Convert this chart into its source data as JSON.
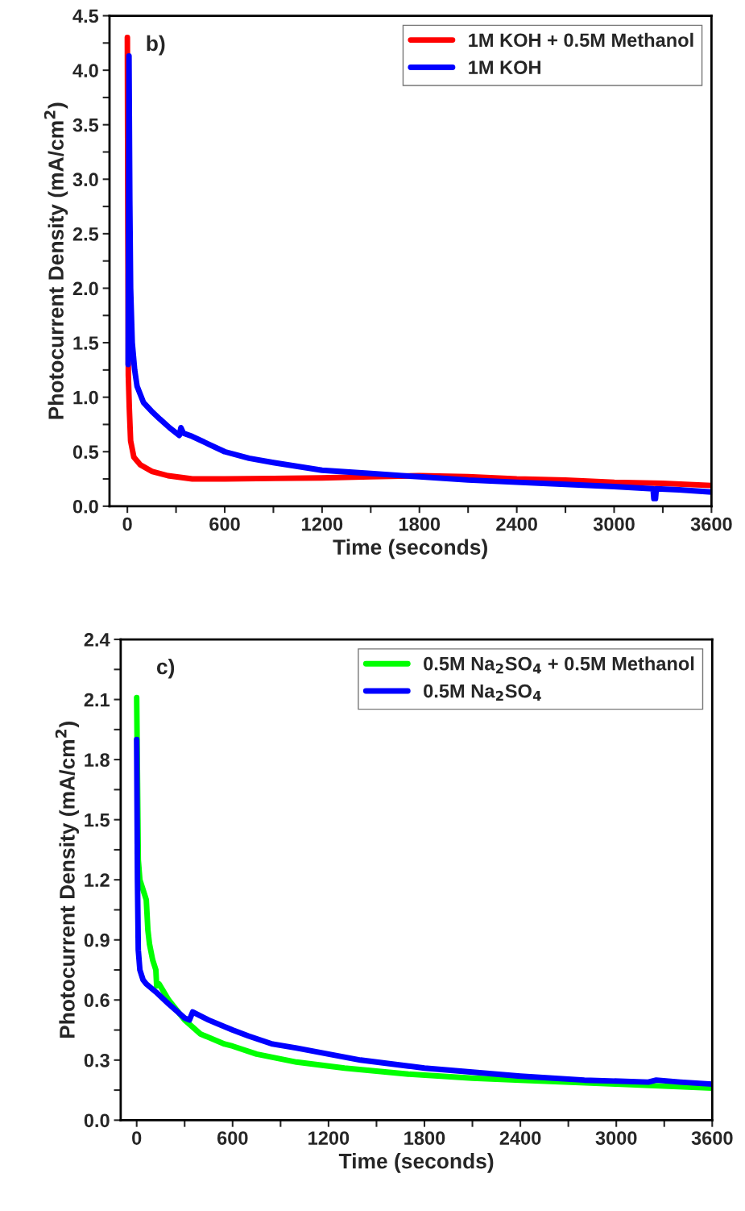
{
  "chart_data": [
    {
      "type": "line",
      "xlabel": "Time (seconds)",
      "ylabel": "Photocurrent Density (mA/cm$^{2}$)",
      "annotations": [
        "b)"
      ],
      "legend": "top right",
      "grid": false,
      "marker": "none",
      "line_style": "solid",
      "xlim": [
        -110,
        3600
      ],
      "ylim": [
        0,
        4.5
      ],
      "xticks": [
        0,
        {
          "value": 300,
          "label": null
        },
        600,
        {
          "value": 900,
          "label": null
        },
        1200,
        {
          "value": 1500,
          "label": null
        },
        1800,
        {
          "value": 2100,
          "label": null
        },
        2400,
        {
          "value": 2700,
          "label": null
        },
        3000,
        {
          "value": 3300,
          "label": null
        },
        3600
      ],
      "yticks": [
        {
          "value": 0,
          "label": "0.0"
        },
        {
          "value": 0.25,
          "label": null
        },
        0.5,
        {
          "value": 0.75,
          "label": null
        },
        {
          "value": 1,
          "label": "1.0"
        },
        {
          "value": 1.25,
          "label": null
        },
        1.5,
        {
          "value": 1.75,
          "label": null
        },
        {
          "value": 2,
          "label": "2.0"
        },
        {
          "value": 2.25,
          "label": null
        },
        2.5,
        {
          "value": 2.75,
          "label": null
        },
        {
          "value": 3,
          "label": "3.0"
        },
        {
          "value": 3.25,
          "label": null
        },
        3.5,
        {
          "value": 3.75,
          "label": null
        },
        {
          "value": 4,
          "label": "4.0"
        },
        {
          "value": 4.25,
          "label": null
        },
        4.5
      ],
      "series": [
        {
          "name": "1M KOH + 0.5M Methanol",
          "color": "#ff0000",
          "x": [
            0,
            3,
            6,
            12,
            20,
            40,
            80,
            150,
            250,
            400,
            600,
            900,
            1200,
            1500,
            1800,
            2100,
            2400,
            2700,
            3000,
            3300,
            3600
          ],
          "values": [
            4.3,
            2.5,
            1.2,
            0.9,
            0.6,
            0.45,
            0.38,
            0.32,
            0.28,
            0.25,
            0.25,
            0.255,
            0.26,
            0.27,
            0.28,
            0.27,
            0.25,
            0.24,
            0.22,
            0.21,
            0.19
          ]
        },
        {
          "name": "1M KOH",
          "color": "#0000ff",
          "x": [
            5,
            10,
            15,
            20,
            30,
            45,
            60,
            100,
            150,
            200,
            260,
            320,
            330,
            345,
            400,
            500,
            600,
            750,
            900,
            1200,
            1500,
            1800,
            2100,
            2400,
            2700,
            3000,
            3240,
            3245,
            3255,
            3260,
            3400,
            3600
          ],
          "values": [
            1.3,
            4.13,
            2.8,
            2.0,
            1.5,
            1.25,
            1.1,
            0.95,
            0.87,
            0.8,
            0.72,
            0.65,
            0.72,
            0.67,
            0.64,
            0.57,
            0.5,
            0.44,
            0.4,
            0.33,
            0.3,
            0.27,
            0.24,
            0.22,
            0.2,
            0.18,
            0.16,
            0.07,
            0.07,
            0.16,
            0.15,
            0.13
          ]
        }
      ]
    },
    {
      "type": "line",
      "xlabel": "Time (seconds)",
      "ylabel": "Photocurrent Density (mA/cm$^{2}$)",
      "annotations": [
        "c)"
      ],
      "legend": "top right",
      "grid": false,
      "marker": "none",
      "line_style": "solid",
      "xlim": [
        -100,
        3600
      ],
      "ylim": [
        0,
        2.4
      ],
      "xticks": [
        0,
        {
          "value": 300,
          "label": null
        },
        600,
        {
          "value": 900,
          "label": null
        },
        1200,
        {
          "value": 1500,
          "label": null
        },
        1800,
        {
          "value": 2100,
          "label": null
        },
        2400,
        {
          "value": 2700,
          "label": null
        },
        3000,
        {
          "value": 3300,
          "label": null
        },
        3600
      ],
      "yticks": [
        {
          "value": 0,
          "label": "0.0"
        },
        {
          "value": 0.15,
          "label": null
        },
        0.3,
        {
          "value": 0.45,
          "label": null
        },
        0.6,
        {
          "value": 0.75,
          "label": null
        },
        0.9,
        {
          "value": 1.05,
          "label": null
        },
        1.2,
        {
          "value": 1.35,
          "label": null
        },
        1.5,
        {
          "value": 1.65,
          "label": null
        },
        1.8,
        {
          "value": 1.95,
          "label": null
        },
        2.1,
        {
          "value": 2.25,
          "label": null
        },
        2.4
      ],
      "series": [
        {
          "name": "0.5M Na$_{2}$SO$_{4}$ + 0.5M Methanol",
          "color": "#00ff00",
          "x": [
            0,
            5,
            10,
            20,
            40,
            60,
            70,
            80,
            100,
            120,
            125,
            140,
            200,
            300,
            400,
            550,
            600,
            750,
            1000,
            1300,
            1700,
            2100,
            2400,
            3000,
            3600
          ],
          "values": [
            2.11,
            1.7,
            1.3,
            1.2,
            1.15,
            1.1,
            0.95,
            0.88,
            0.8,
            0.75,
            0.67,
            0.68,
            0.6,
            0.5,
            0.43,
            0.38,
            0.37,
            0.33,
            0.29,
            0.26,
            0.23,
            0.21,
            0.2,
            0.18,
            0.16
          ]
        },
        {
          "name": "0.5M Na$_{2}$SO$_{4}$",
          "color": "#0000ff",
          "x": [
            0,
            5,
            10,
            20,
            40,
            60,
            120,
            200,
            300,
            330,
            350,
            450,
            600,
            700,
            850,
            1000,
            1200,
            1400,
            1700,
            1800,
            2100,
            2400,
            2800,
            3200,
            3250,
            3400,
            3600
          ],
          "values": [
            1.9,
            1.2,
            0.85,
            0.75,
            0.7,
            0.68,
            0.64,
            0.58,
            0.51,
            0.5,
            0.54,
            0.5,
            0.45,
            0.42,
            0.38,
            0.36,
            0.33,
            0.3,
            0.27,
            0.26,
            0.24,
            0.22,
            0.2,
            0.19,
            0.2,
            0.19,
            0.18
          ]
        }
      ]
    }
  ]
}
